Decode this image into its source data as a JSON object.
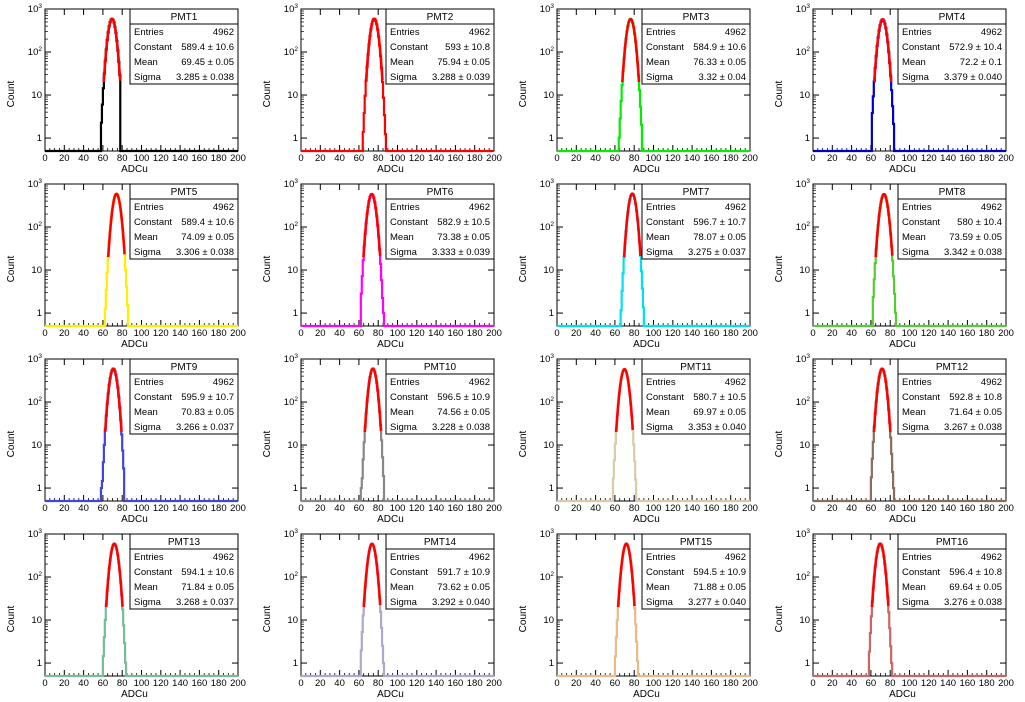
{
  "figure": {
    "xlabel": "ADCu",
    "ylabel": "Count",
    "stat_labels": {
      "entries": "Entries",
      "constant": "Constant",
      "mean": "Mean",
      "sigma": "Sigma"
    },
    "pm": "±"
  },
  "chart_data": [
    {
      "type": "histogram",
      "title": "PMT1",
      "xlabel": "ADCu",
      "ylabel": "Count",
      "xlim": [
        0,
        200
      ],
      "ylog": true,
      "ylim": [
        0.5,
        1000
      ],
      "x_ticks": [
        0,
        20,
        40,
        60,
        80,
        100,
        120,
        140,
        160,
        180,
        200
      ],
      "y_ticks": [
        {
          "value": 1,
          "label": "1"
        },
        {
          "value": 10,
          "label": "10"
        },
        {
          "value": 100,
          "label": "10²"
        },
        {
          "value": 1000,
          "label": "10³"
        }
      ],
      "color": "#000000",
      "fit_color": "#ff0000",
      "range": [
        58,
        78
      ],
      "stats": {
        "entries": "4962",
        "constant": "589.4 ± 10.6",
        "mean": "69.45 ± 0.05",
        "sigma": "3.285 ± 0.038"
      }
    },
    {
      "type": "histogram",
      "title": "PMT2",
      "xlabel": "ADCu",
      "ylabel": "Count",
      "xlim": [
        0,
        200
      ],
      "ylog": true,
      "ylim": [
        0.5,
        1000
      ],
      "x_ticks": [
        0,
        20,
        40,
        60,
        80,
        100,
        120,
        140,
        160,
        180,
        200
      ],
      "y_ticks": [
        {
          "value": 1,
          "label": "1"
        },
        {
          "value": 10,
          "label": "10"
        },
        {
          "value": 100,
          "label": "10²"
        },
        {
          "value": 1000,
          "label": "10³"
        }
      ],
      "color": "#ff0000",
      "fit_color": "#ff0000",
      "range": [
        64,
        88
      ],
      "stats": {
        "entries": "4962",
        "constant": "593 ± 10.8",
        "mean": "75.94 ± 0.05",
        "sigma": "3.288 ± 0.039"
      }
    },
    {
      "type": "histogram",
      "title": "PMT3",
      "xlabel": "ADCu",
      "ylabel": "Count",
      "xlim": [
        0,
        200
      ],
      "ylog": true,
      "ylim": [
        0.5,
        1000
      ],
      "x_ticks": [
        0,
        20,
        40,
        60,
        80,
        100,
        120,
        140,
        160,
        180,
        200
      ],
      "y_ticks": [
        {
          "value": 1,
          "label": "1"
        },
        {
          "value": 10,
          "label": "10"
        },
        {
          "value": 100,
          "label": "10²"
        },
        {
          "value": 1000,
          "label": "10³"
        }
      ],
      "color": "#00ee00",
      "fit_color": "#ff0000",
      "range": [
        64,
        88
      ],
      "stats": {
        "entries": "4962",
        "constant": "584.9 ± 10.6",
        "mean": "76.33 ± 0.05",
        "sigma": "3.32 ± 0.04"
      }
    },
    {
      "type": "histogram",
      "title": "PMT4",
      "xlabel": "ADCu",
      "ylabel": "Count",
      "xlim": [
        0,
        200
      ],
      "ylog": true,
      "ylim": [
        0.5,
        1000
      ],
      "x_ticks": [
        0,
        20,
        40,
        60,
        80,
        100,
        120,
        140,
        160,
        180,
        200
      ],
      "y_ticks": [
        {
          "value": 1,
          "label": "1"
        },
        {
          "value": 10,
          "label": "10"
        },
        {
          "value": 100,
          "label": "10²"
        },
        {
          "value": 1000,
          "label": "10³"
        }
      ],
      "color": "#0000cc",
      "fit_color": "#ff0000",
      "range": [
        61,
        84
      ],
      "stats": {
        "entries": "4962",
        "constant": "572.9 ± 10.4",
        "mean": "72.2 ± 0.1",
        "sigma": "3.379 ± 0.040"
      }
    },
    {
      "type": "histogram",
      "title": "PMT5",
      "xlabel": "ADCu",
      "ylabel": "Count",
      "xlim": [
        0,
        200
      ],
      "ylog": true,
      "ylim": [
        0.5,
        1000
      ],
      "x_ticks": [
        0,
        20,
        40,
        60,
        80,
        100,
        120,
        140,
        160,
        180,
        200
      ],
      "y_ticks": [
        {
          "value": 1,
          "label": "1"
        },
        {
          "value": 10,
          "label": "10"
        },
        {
          "value": 100,
          "label": "10²"
        },
        {
          "value": 1000,
          "label": "10³"
        }
      ],
      "color": "#ffee00",
      "fit_color": "#ff0000",
      "range": [
        62,
        86
      ],
      "stats": {
        "entries": "4962",
        "constant": "589.4 ± 10.6",
        "mean": "74.09 ± 0.05",
        "sigma": "3.306 ± 0.038"
      }
    },
    {
      "type": "histogram",
      "title": "PMT6",
      "xlabel": "ADCu",
      "ylabel": "Count",
      "xlim": [
        0,
        200
      ],
      "ylog": true,
      "ylim": [
        0.5,
        1000
      ],
      "x_ticks": [
        0,
        20,
        40,
        60,
        80,
        100,
        120,
        140,
        160,
        180,
        200
      ],
      "y_ticks": [
        {
          "value": 1,
          "label": "1"
        },
        {
          "value": 10,
          "label": "10"
        },
        {
          "value": 100,
          "label": "10²"
        },
        {
          "value": 1000,
          "label": "10³"
        }
      ],
      "color": "#ff00ff",
      "fit_color": "#ff0000",
      "range": [
        62,
        86
      ],
      "stats": {
        "entries": "4962",
        "constant": "582.9 ± 10.5",
        "mean": "73.38 ± 0.05",
        "sigma": "3.333 ± 0.039"
      }
    },
    {
      "type": "histogram",
      "title": "PMT7",
      "xlabel": "ADCu",
      "ylabel": "Count",
      "xlim": [
        0,
        200
      ],
      "ylog": true,
      "ylim": [
        0.5,
        1000
      ],
      "x_ticks": [
        0,
        20,
        40,
        60,
        80,
        100,
        120,
        140,
        160,
        180,
        200
      ],
      "y_ticks": [
        {
          "value": 1,
          "label": "1"
        },
        {
          "value": 10,
          "label": "10"
        },
        {
          "value": 100,
          "label": "10²"
        },
        {
          "value": 1000,
          "label": "10³"
        }
      ],
      "color": "#00e0ee",
      "fit_color": "#ff0000",
      "range": [
        66,
        90
      ],
      "stats": {
        "entries": "4962",
        "constant": "596.7 ± 10.7",
        "mean": "78.07 ± 0.05",
        "sigma": "3.275 ± 0.037"
      }
    },
    {
      "type": "histogram",
      "title": "PMT8",
      "xlabel": "ADCu",
      "ylabel": "Count",
      "xlim": [
        0,
        200
      ],
      "ylog": true,
      "ylim": [
        0.5,
        1000
      ],
      "x_ticks": [
        0,
        20,
        40,
        60,
        80,
        100,
        120,
        140,
        160,
        180,
        200
      ],
      "y_ticks": [
        {
          "value": 1,
          "label": "1"
        },
        {
          "value": 10,
          "label": "10"
        },
        {
          "value": 100,
          "label": "10²"
        },
        {
          "value": 1000,
          "label": "10³"
        }
      ],
      "color": "#55cc33",
      "fit_color": "#ff0000",
      "range": [
        62,
        86
      ],
      "stats": {
        "entries": "4962",
        "constant": "580 ± 10.4",
        "mean": "73.59 ± 0.05",
        "sigma": "3.342 ± 0.038"
      }
    },
    {
      "type": "histogram",
      "title": "PMT9",
      "xlabel": "ADCu",
      "ylabel": "Count",
      "xlim": [
        0,
        200
      ],
      "ylog": true,
      "ylim": [
        0.5,
        1000
      ],
      "x_ticks": [
        0,
        20,
        40,
        60,
        80,
        100,
        120,
        140,
        160,
        180,
        200
      ],
      "y_ticks": [
        {
          "value": 1,
          "label": "1"
        },
        {
          "value": 10,
          "label": "10"
        },
        {
          "value": 100,
          "label": "10²"
        },
        {
          "value": 1000,
          "label": "10³"
        }
      ],
      "color": "#4444dd",
      "fit_color": "#ff0000",
      "range": [
        58,
        82
      ],
      "stats": {
        "entries": "4962",
        "constant": "595.9 ± 10.7",
        "mean": "70.83 ± 0.05",
        "sigma": "3.266 ± 0.037"
      }
    },
    {
      "type": "histogram",
      "title": "PMT10",
      "xlabel": "ADCu",
      "ylabel": "Count",
      "xlim": [
        0,
        200
      ],
      "ylog": true,
      "ylim": [
        0.5,
        1000
      ],
      "x_ticks": [
        0,
        20,
        40,
        60,
        80,
        100,
        120,
        140,
        160,
        180,
        200
      ],
      "y_ticks": [
        {
          "value": 1,
          "label": "1"
        },
        {
          "value": 10,
          "label": "10"
        },
        {
          "value": 100,
          "label": "10²"
        },
        {
          "value": 1000,
          "label": "10³"
        }
      ],
      "color": "#888888",
      "fit_color": "#ff0000",
      "range": [
        62,
        86
      ],
      "stats": {
        "entries": "4962",
        "constant": "596.5 ± 10.9",
        "mean": "74.56 ± 0.05",
        "sigma": "3.228 ± 0.038"
      }
    },
    {
      "type": "histogram",
      "title": "PMT11",
      "xlabel": "ADCu",
      "ylabel": "Count",
      "xlim": [
        0,
        200
      ],
      "ylog": true,
      "ylim": [
        0.5,
        1000
      ],
      "x_ticks": [
        0,
        20,
        40,
        60,
        80,
        100,
        120,
        140,
        160,
        180,
        200
      ],
      "y_ticks": [
        {
          "value": 1,
          "label": "1"
        },
        {
          "value": 10,
          "label": "10"
        },
        {
          "value": 100,
          "label": "10²"
        },
        {
          "value": 1000,
          "label": "10³"
        }
      ],
      "color": "#d8cba8",
      "fit_color": "#ff0000",
      "range": [
        58,
        82
      ],
      "stats": {
        "entries": "4962",
        "constant": "580.7 ± 10.5",
        "mean": "69.97 ± 0.05",
        "sigma": "3.353 ± 0.040"
      }
    },
    {
      "type": "histogram",
      "title": "PMT12",
      "xlabel": "ADCu",
      "ylabel": "Count",
      "xlim": [
        0,
        200
      ],
      "ylog": true,
      "ylim": [
        0.5,
        1000
      ],
      "x_ticks": [
        0,
        20,
        40,
        60,
        80,
        100,
        120,
        140,
        160,
        180,
        200
      ],
      "y_ticks": [
        {
          "value": 1,
          "label": "1"
        },
        {
          "value": 10,
          "label": "10"
        },
        {
          "value": 100,
          "label": "10²"
        },
        {
          "value": 1000,
          "label": "10³"
        }
      ],
      "color": "#8a6d5a",
      "fit_color": "#ff0000",
      "range": [
        60,
        84
      ],
      "stats": {
        "entries": "4962",
        "constant": "592.8 ± 10.8",
        "mean": "71.64 ± 0.05",
        "sigma": "3.267 ± 0.038"
      }
    },
    {
      "type": "histogram",
      "title": "PMT13",
      "xlabel": "ADCu",
      "ylabel": "Count",
      "xlim": [
        0,
        200
      ],
      "ylog": true,
      "ylim": [
        0.5,
        1000
      ],
      "x_ticks": [
        0,
        20,
        40,
        60,
        80,
        100,
        120,
        140,
        160,
        180,
        200
      ],
      "y_ticks": [
        {
          "value": 1,
          "label": "1"
        },
        {
          "value": 10,
          "label": "10"
        },
        {
          "value": 100,
          "label": "10²"
        },
        {
          "value": 1000,
          "label": "10³"
        }
      ],
      "color": "#77bb99",
      "fit_color": "#ff0000",
      "range": [
        60,
        84
      ],
      "stats": {
        "entries": "4962",
        "constant": "594.1 ± 10.6",
        "mean": "71.84 ± 0.05",
        "sigma": "3.268 ± 0.037"
      }
    },
    {
      "type": "histogram",
      "title": "PMT14",
      "xlabel": "ADCu",
      "ylabel": "Count",
      "xlim": [
        0,
        200
      ],
      "ylog": true,
      "ylim": [
        0.5,
        1000
      ],
      "x_ticks": [
        0,
        20,
        40,
        60,
        80,
        100,
        120,
        140,
        160,
        180,
        200
      ],
      "y_ticks": [
        {
          "value": 1,
          "label": "1"
        },
        {
          "value": 10,
          "label": "10"
        },
        {
          "value": 100,
          "label": "10²"
        },
        {
          "value": 1000,
          "label": "10³"
        }
      ],
      "color": "#aaaacc",
      "fit_color": "#ff0000",
      "range": [
        62,
        86
      ],
      "stats": {
        "entries": "4962",
        "constant": "591.7 ± 10.9",
        "mean": "73.62 ± 0.05",
        "sigma": "3.292 ± 0.040"
      }
    },
    {
      "type": "histogram",
      "title": "PMT15",
      "xlabel": "ADCu",
      "ylabel": "Count",
      "xlim": [
        0,
        200
      ],
      "ylog": true,
      "ylim": [
        0.5,
        1000
      ],
      "x_ticks": [
        0,
        20,
        40,
        60,
        80,
        100,
        120,
        140,
        160,
        180,
        200
      ],
      "y_ticks": [
        {
          "value": 1,
          "label": "1"
        },
        {
          "value": 10,
          "label": "10"
        },
        {
          "value": 100,
          "label": "10²"
        },
        {
          "value": 1000,
          "label": "10³"
        }
      ],
      "color": "#e8bb88",
      "fit_color": "#ff0000",
      "range": [
        60,
        84
      ],
      "stats": {
        "entries": "4962",
        "constant": "594.5 ± 10.9",
        "mean": "71.88 ± 0.05",
        "sigma": "3.277 ± 0.040"
      }
    },
    {
      "type": "histogram",
      "title": "PMT16",
      "xlabel": "ADCu",
      "ylabel": "Count",
      "xlim": [
        0,
        200
      ],
      "ylog": true,
      "ylim": [
        0.5,
        1000
      ],
      "x_ticks": [
        0,
        20,
        40,
        60,
        80,
        100,
        120,
        140,
        160,
        180,
        200
      ],
      "y_ticks": [
        {
          "value": 1,
          "label": "1"
        },
        {
          "value": 10,
          "label": "10"
        },
        {
          "value": 100,
          "label": "10²"
        },
        {
          "value": 1000,
          "label": "10³"
        }
      ],
      "color": "#cc6666",
      "fit_color": "#ff0000",
      "range": [
        58,
        82
      ],
      "stats": {
        "entries": "4962",
        "constant": "596.4 ± 10.8",
        "mean": "69.64 ± 0.05",
        "sigma": "3.276 ± 0.038"
      }
    }
  ]
}
